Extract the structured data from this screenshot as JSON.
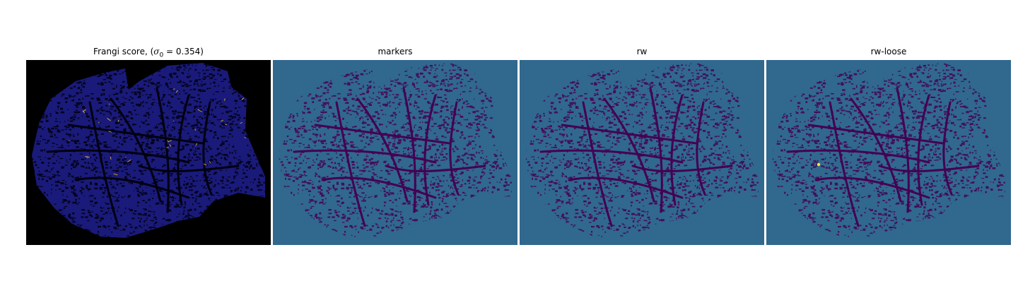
{
  "figure": {
    "panels": [
      {
        "id": "frangi",
        "title_prefix": "Frangi score, (",
        "title_sigma": "σ",
        "title_sub": "0",
        "title_suffix": " = 0.354)",
        "background": "#000000",
        "tissue": "#1a1a7a",
        "vessel": "#000010",
        "highlight": "#f2b830"
      },
      {
        "id": "markers",
        "title": "markers",
        "background": "#31688e",
        "tissue": "#31688e",
        "vessel": "#440154",
        "highlight": "#440154"
      },
      {
        "id": "rw",
        "title": "rw",
        "background": "#31688e",
        "tissue": "#31688e",
        "vessel": "#440154",
        "highlight": "#440154"
      },
      {
        "id": "rw-loose",
        "title": "rw-loose",
        "background": "#31688e",
        "tissue": "#31688e",
        "vessel": "#440154",
        "highlight": "#fde725"
      }
    ]
  }
}
